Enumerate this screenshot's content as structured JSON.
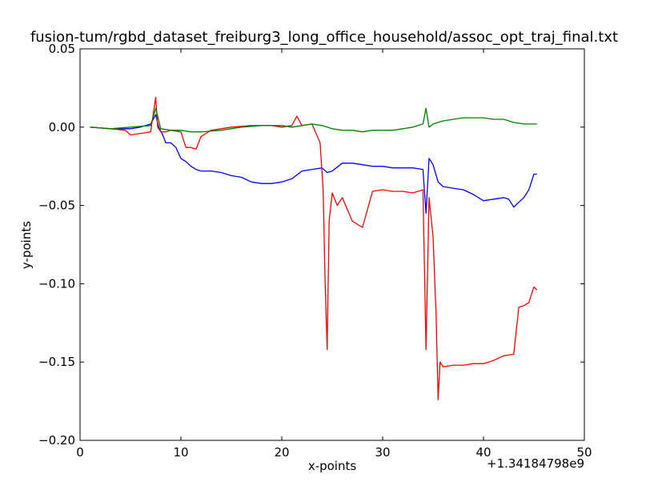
{
  "chart_data": {
    "type": "line",
    "title": "fusion-tum/rgbd_dataset_freiburg3_long_office_household/assoc_opt_traj_final.txt",
    "xlabel": "x-points",
    "ylabel": "y-points",
    "x_offset_label": "+1.34184798e9",
    "xlim": [
      0,
      50
    ],
    "ylim": [
      -0.2,
      0.05
    ],
    "x_ticks": [
      "0",
      "10",
      "20",
      "30",
      "40",
      "50"
    ],
    "y_ticks": [
      "0.05",
      "0.00",
      "−0.05",
      "−0.10",
      "−0.15",
      "−0.20"
    ],
    "grid": false,
    "legend": "none",
    "series": [
      {
        "color": "#0000ff",
        "x": [
          1.0,
          3.0,
          5.0,
          6.0,
          6.5,
          7.0,
          7.5,
          7.8,
          8.2,
          8.5,
          9.0,
          9.5,
          10.0,
          10.5,
          11.0,
          11.5,
          12.0,
          13.0,
          14.0,
          15.0,
          16.0,
          17.0,
          18.0,
          19.0,
          20.0,
          21.0,
          22.0,
          23.0,
          24.0,
          24.5,
          25.0,
          26.0,
          27.0,
          28.0,
          29.0,
          30.0,
          31.0,
          32.0,
          33.0,
          34.0,
          34.3,
          34.6,
          35.0,
          35.5,
          36.0,
          37.0,
          38.0,
          39.0,
          40.0,
          41.0,
          42.0,
          42.5,
          43.0,
          43.5,
          44.0,
          44.5,
          45.0,
          45.3
        ],
        "y": [
          0.0,
          -0.001,
          -0.001,
          0.0,
          0.001,
          0.002,
          0.008,
          0.0,
          -0.005,
          -0.01,
          -0.01,
          -0.013,
          -0.02,
          -0.022,
          -0.025,
          -0.027,
          -0.028,
          -0.028,
          -0.029,
          -0.031,
          -0.032,
          -0.035,
          -0.036,
          -0.036,
          -0.035,
          -0.033,
          -0.028,
          -0.027,
          -0.026,
          -0.029,
          -0.028,
          -0.023,
          -0.023,
          -0.024,
          -0.025,
          -0.025,
          -0.026,
          -0.026,
          -0.026,
          -0.027,
          -0.055,
          -0.02,
          -0.024,
          -0.035,
          -0.038,
          -0.039,
          -0.04,
          -0.043,
          -0.047,
          -0.046,
          -0.045,
          -0.046,
          -0.051,
          -0.048,
          -0.045,
          -0.04,
          -0.03,
          -0.03
        ]
      },
      {
        "color": "#ff0000",
        "x": [
          1.0,
          3.0,
          4.5,
          5.0,
          6.0,
          7.0,
          7.5,
          7.7,
          8.0,
          8.5,
          9.0,
          10.0,
          10.5,
          11.0,
          11.5,
          12.0,
          13.0,
          15.0,
          17.0,
          19.0,
          20.0,
          21.0,
          21.5,
          22.0,
          23.0,
          23.8,
          24.1,
          24.3,
          24.5,
          24.7,
          25.0,
          25.5,
          26.0,
          27.0,
          28.0,
          29.0,
          30.0,
          31.0,
          32.0,
          33.0,
          34.0,
          34.3,
          34.6,
          35.0,
          35.3,
          35.5,
          35.7,
          36.0,
          37.0,
          38.0,
          39.0,
          40.0,
          41.0,
          42.0,
          43.0,
          43.5,
          44.0,
          44.5,
          45.0,
          45.3
        ],
        "y": [
          0.0,
          -0.001,
          -0.002,
          -0.005,
          -0.004,
          -0.003,
          0.019,
          0.0,
          -0.003,
          -0.003,
          -0.002,
          -0.003,
          -0.013,
          -0.013,
          -0.014,
          -0.006,
          -0.002,
          0.0,
          0.001,
          0.001,
          0.0,
          0.001,
          0.007,
          0.001,
          0.002,
          -0.01,
          -0.04,
          -0.1,
          -0.142,
          -0.06,
          -0.042,
          -0.05,
          -0.045,
          -0.06,
          -0.064,
          -0.041,
          -0.04,
          -0.041,
          -0.041,
          -0.042,
          -0.04,
          -0.142,
          -0.045,
          -0.07,
          -0.12,
          -0.174,
          -0.15,
          -0.153,
          -0.152,
          -0.152,
          -0.151,
          -0.151,
          -0.149,
          -0.146,
          -0.145,
          -0.115,
          -0.114,
          -0.112,
          -0.102,
          -0.104
        ]
      },
      {
        "color": "#008000",
        "x": [
          1.0,
          3.0,
          5.0,
          7.0,
          7.5,
          8.0,
          9.0,
          10.0,
          11.0,
          12.0,
          14.0,
          16.0,
          18.0,
          20.0,
          21.0,
          22.0,
          23.0,
          24.0,
          25.0,
          26.0,
          27.0,
          28.0,
          29.0,
          30.0,
          31.0,
          32.0,
          33.0,
          34.0,
          34.3,
          34.6,
          35.0,
          36.0,
          37.0,
          38.0,
          39.0,
          40.0,
          41.0,
          42.0,
          43.0,
          44.0,
          45.0,
          45.3
        ],
        "y": [
          0.0,
          -0.001,
          0.0,
          0.001,
          0.012,
          -0.001,
          -0.002,
          -0.002,
          -0.003,
          -0.003,
          -0.002,
          0.0,
          0.001,
          0.001,
          0.0,
          0.001,
          0.002,
          0.001,
          -0.001,
          -0.002,
          -0.002,
          -0.003,
          -0.002,
          -0.002,
          -0.002,
          -0.001,
          0.0,
          0.002,
          0.012,
          0.0,
          0.002,
          0.004,
          0.005,
          0.006,
          0.006,
          0.006,
          0.005,
          0.005,
          0.003,
          0.002,
          0.002,
          0.002
        ]
      }
    ]
  }
}
